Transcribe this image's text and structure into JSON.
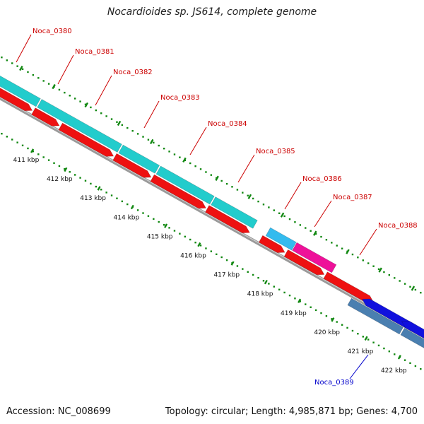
{
  "title": "Nocardioides sp. JS614, complete genome",
  "footer": {
    "accession": "Accession: NC_008699",
    "summary": "Topology: circular; Length: 4,985,871 bp; Genes: 4,700"
  },
  "kbp_ticks": [
    "411 kbp",
    "412 kbp",
    "413 kbp",
    "414 kbp",
    "415 kbp",
    "416 kbp",
    "417 kbp",
    "418 kbp",
    "419 kbp",
    "420 kbp",
    "421 kbp",
    "422 kbp"
  ],
  "genes": [
    {
      "name": "Noca_0380",
      "color": "#cc0000"
    },
    {
      "name": "Noca_0381",
      "color": "#cc0000"
    },
    {
      "name": "Noca_0382",
      "color": "#cc0000"
    },
    {
      "name": "Noca_0383",
      "color": "#cc0000"
    },
    {
      "name": "Noca_0384",
      "color": "#cc0000"
    },
    {
      "name": "Noca_0385",
      "color": "#cc0000"
    },
    {
      "name": "Noca_0386",
      "color": "#cc0000"
    },
    {
      "name": "Noca_0387",
      "color": "#cc0000"
    },
    {
      "name": "Noca_0388",
      "color": "#cc0000"
    },
    {
      "name": "Noca_0389",
      "color": "#0000cc"
    }
  ],
  "colors": {
    "forward_cds": "#ee1111",
    "reverse_cds": "#1111dd",
    "cog_cyan": "#22cccc",
    "cog_light_blue": "#33bbee",
    "cog_magenta": "#ee1199",
    "cog_steel": "#4a7fb0",
    "backbone": "#888888",
    "tick_green": "#118811"
  }
}
